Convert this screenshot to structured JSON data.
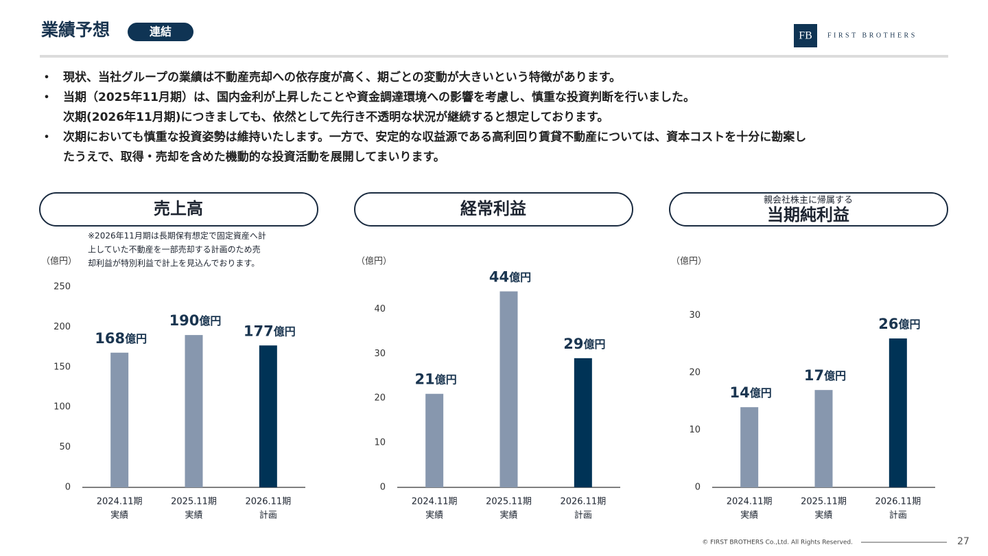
{
  "header": {
    "title": "業績予想",
    "badge": "連結",
    "logo_mark": "FB",
    "logo_text": "FIRST BROTHERS"
  },
  "bullets": [
    [
      "現状、当社グループの業績は不動産売却への依存度が高く、期ごとの変動が大きいという特徴があります。"
    ],
    [
      "当期（2025年11月期）は、国内金利が上昇したことや資金調達環境への影響を考慮し、慎重な投資判断を行いました。",
      "次期(2026年11月期)につきましても、依然として先行き不透明な状況が継続すると想定しております。"
    ],
    [
      "次期においても慎重な投資姿勢は維持いたします。一方で、安定的な収益源である高利回り賃貸不動産については、資本コストを十分に勘案し",
      "たうえで、取得・売却を含めた機動的な投資活動を展開してまいります。"
    ]
  ],
  "chart_data": [
    {
      "type": "bar",
      "title": "売上高",
      "note": [
        "※2026年11月期は長期保有想定で固定資産へ計",
        "上していた不動産を一部売却する計画のため売",
        "却利益が特別利益で計上を見込んでおります。"
      ],
      "y_unit": "（億円）",
      "categories": [
        "2024.11期",
        "2025.11期",
        "2026.11期"
      ],
      "category_sublabels": [
        "実績",
        "実績",
        "計画"
      ],
      "values": [
        168,
        190,
        177
      ],
      "value_labels": [
        "168億円",
        "190億円",
        "177億円"
      ],
      "colors": [
        "#8797ae",
        "#8797ae",
        "#003356"
      ],
      "ylim": [
        0,
        250
      ],
      "yticks": [
        0,
        50,
        100,
        150,
        200,
        250
      ]
    },
    {
      "type": "bar",
      "title": "経常利益",
      "y_unit": "（億円）",
      "categories": [
        "2024.11期",
        "2025.11期",
        "2026.11期"
      ],
      "category_sublabels": [
        "実績",
        "実績",
        "計画"
      ],
      "values": [
        21,
        44,
        29
      ],
      "value_labels": [
        "21億円",
        "44億円",
        "29億円"
      ],
      "colors": [
        "#8797ae",
        "#8797ae",
        "#003356"
      ],
      "ylim": [
        0,
        45
      ],
      "yticks": [
        0,
        10,
        20,
        30,
        40
      ]
    },
    {
      "type": "bar",
      "subtitle": "親会社株主に帰属する",
      "title": "当期純利益",
      "y_unit": "（億円）",
      "categories": [
        "2024.11期",
        "2025.11期",
        "2026.11期"
      ],
      "category_sublabels": [
        "実績",
        "実績",
        "計画"
      ],
      "values": [
        14,
        17,
        26
      ],
      "value_labels": [
        "14億円",
        "17億円",
        "26億円"
      ],
      "colors": [
        "#8797ae",
        "#8797ae",
        "#003356"
      ],
      "ylim": [
        0,
        35
      ],
      "yticks": [
        0,
        10,
        20,
        30
      ]
    }
  ],
  "footer": {
    "copyright": "© FIRST BROTHERS Co.,Ltd. All Rights Reserved.",
    "page": "27"
  }
}
